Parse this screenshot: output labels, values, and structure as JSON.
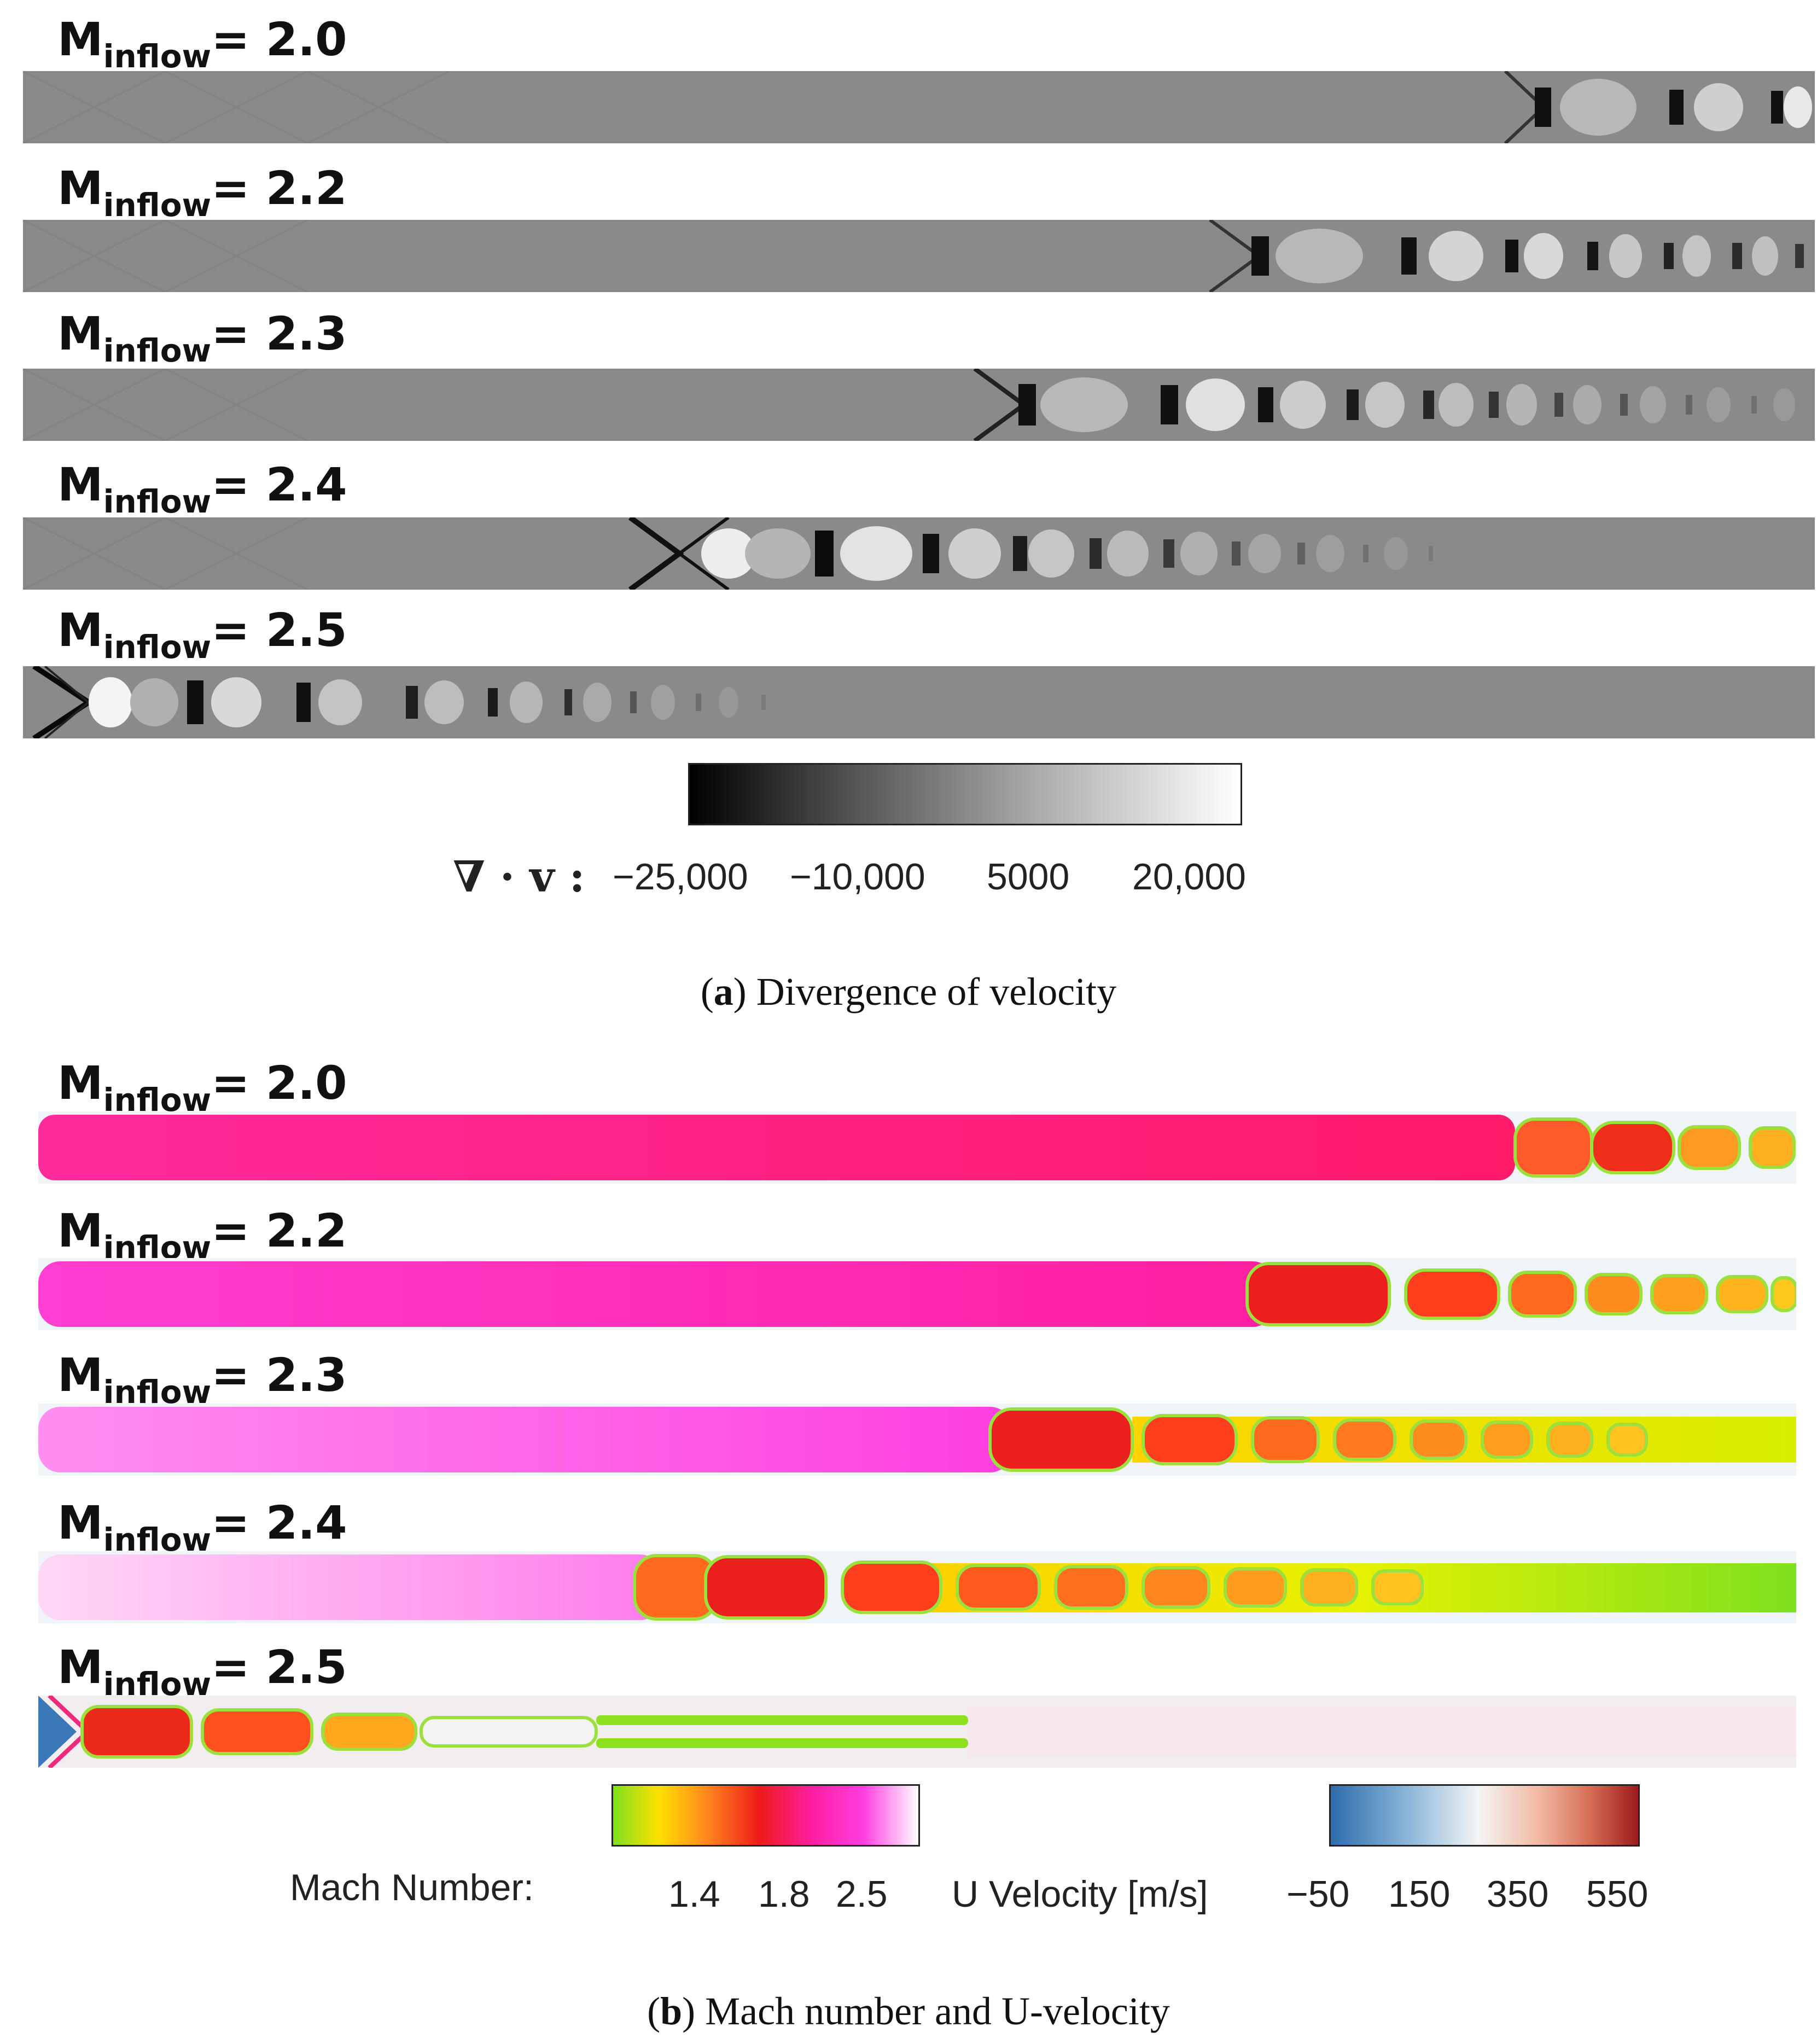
{
  "panel_a": {
    "rows": [
      {
        "base": "M",
        "sub": "inflow",
        "value": "= 2.0"
      },
      {
        "base": "M",
        "sub": "inflow",
        "value": "= 2.2"
      },
      {
        "base": "M",
        "sub": "inflow",
        "value": "= 2.3"
      },
      {
        "base": "M",
        "sub": "inflow",
        "value": "= 2.4"
      },
      {
        "base": "M",
        "sub": "inflow",
        "value": "= 2.5"
      }
    ],
    "colorbar_symbol": "∇ · v :",
    "colorbar_ticks": [
      "−25,000",
      "−10,000",
      "5000",
      "20,000"
    ],
    "caption_letter": "a",
    "caption_text": "Divergence of velocity"
  },
  "panel_b": {
    "rows": [
      {
        "base": "M",
        "sub": "inflow",
        "value": "= 2.0"
      },
      {
        "base": "M",
        "sub": "inflow",
        "value": "= 2.2"
      },
      {
        "base": "M",
        "sub": "inflow",
        "value": "= 2.3"
      },
      {
        "base": "M",
        "sub": "inflow",
        "value": "= 2.4"
      },
      {
        "base": "M",
        "sub": "inflow",
        "value": "= 2.5"
      }
    ],
    "mach_label": "Mach Number:",
    "mach_ticks": [
      "1.4",
      "1.8",
      "2.5"
    ],
    "u_label": "U Velocity [m/s]",
    "u_ticks": [
      "−50",
      "150",
      "350",
      "550"
    ],
    "caption_letter": "b",
    "caption_text": "Mach number and U-velocity"
  },
  "colors": {
    "strip_gray": "#8a8a8a",
    "mach_magenta": "#ff1e9b",
    "mach_red": "#ee1a1a",
    "mach_green": "#7ee01e",
    "u_blue": "#2d6cad",
    "u_red": "#9b1b1b"
  }
}
